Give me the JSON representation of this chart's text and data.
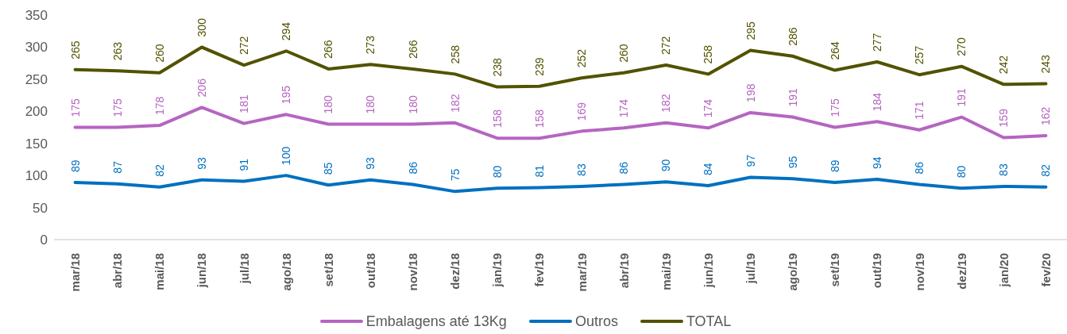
{
  "chart_data": {
    "type": "line",
    "categories": [
      "mar/18",
      "abr/18",
      "mai/18",
      "jun/18",
      "jul/18",
      "ago/18",
      "set/18",
      "out/18",
      "nov/18",
      "dez/18",
      "jan/19",
      "fev/19",
      "mar/19",
      "abr/19",
      "mai/19",
      "jun/19",
      "jul/19",
      "ago/19",
      "set/19",
      "out/19",
      "nov/19",
      "dez/19",
      "jan/20",
      "fev/20"
    ],
    "series": [
      {
        "name": "Embalagens até 13Kg",
        "color": "#b565c1",
        "values": [
          175,
          175,
          178,
          206,
          181,
          195,
          180,
          180,
          180,
          182,
          158,
          158,
          169,
          174,
          182,
          174,
          198,
          191,
          175,
          184,
          171,
          191,
          159,
          162
        ]
      },
      {
        "name": "Outros",
        "color": "#0070c0",
        "values": [
          89,
          87,
          82,
          93,
          91,
          100,
          85,
          93,
          86,
          75,
          80,
          81,
          83,
          86,
          90,
          84,
          97,
          95,
          89,
          94,
          86,
          80,
          83,
          82
        ]
      },
      {
        "name": "TOTAL",
        "color": "#525200",
        "values": [
          265,
          263,
          260,
          300,
          272,
          294,
          266,
          273,
          266,
          258,
          238,
          239,
          252,
          260,
          272,
          258,
          295,
          286,
          264,
          277,
          257,
          270,
          242,
          243
        ]
      }
    ],
    "ylim": [
      0,
      350
    ],
    "yticks": [
      0,
      50,
      100,
      150,
      200,
      250,
      300,
      350
    ],
    "data_labels": true,
    "legend": "bottom"
  }
}
